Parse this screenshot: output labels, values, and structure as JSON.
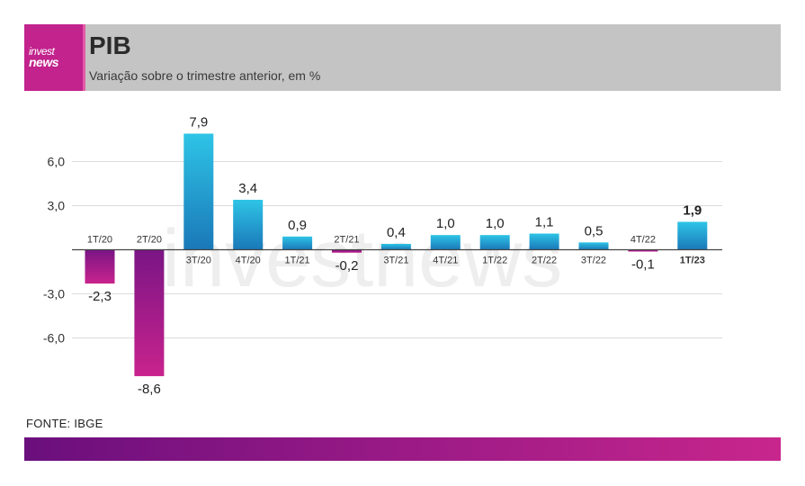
{
  "header": {
    "logo_line1": "invest",
    "logo_line2": "news",
    "title": "PIB",
    "subtitle": "Variação sobre o trimestre anterior, em %"
  },
  "watermark": "investnews",
  "source": "FONTE: IBGE",
  "colors": {
    "header_bg": "#c4c4c4",
    "brand_magenta": "#c2238d",
    "positive_top": "#2ec4e6",
    "positive_bottom": "#1a78b8",
    "negative_top": "#7a1585",
    "negative_bottom": "#c9238d",
    "footer_left": "#6a0f7d",
    "footer_right": "#c8268c"
  },
  "chart_data": {
    "type": "bar",
    "title": "PIB",
    "subtitle": "Variação sobre o trimestre anterior, em %",
    "categories": [
      "1T/20",
      "2T/20",
      "3T/20",
      "4T/20",
      "1T/21",
      "2T/21",
      "3T/21",
      "4T/21",
      "1T/22",
      "2T/22",
      "3T/22",
      "4T/22",
      "1T/23"
    ],
    "values": [
      -2.3,
      -8.6,
      7.9,
      3.4,
      0.9,
      -0.2,
      0.4,
      1.0,
      1.0,
      1.1,
      0.5,
      -0.1,
      1.9
    ],
    "value_labels": [
      "-2,3",
      "-8,6",
      "7,9",
      "3,4",
      "0,9",
      "-0,2",
      "0,4",
      "1,0",
      "1,0",
      "1,1",
      "0,5",
      "-0,1",
      "1,9"
    ],
    "highlight": "1T/23",
    "y_ticks": [
      6.0,
      3.0,
      -3.0,
      -6.0
    ],
    "y_tick_labels": [
      "6,0",
      "3,0",
      "-3,0",
      "-6,0"
    ],
    "ylim": [
      -9,
      8
    ],
    "grid": true,
    "xlabel": "",
    "ylabel": ""
  }
}
